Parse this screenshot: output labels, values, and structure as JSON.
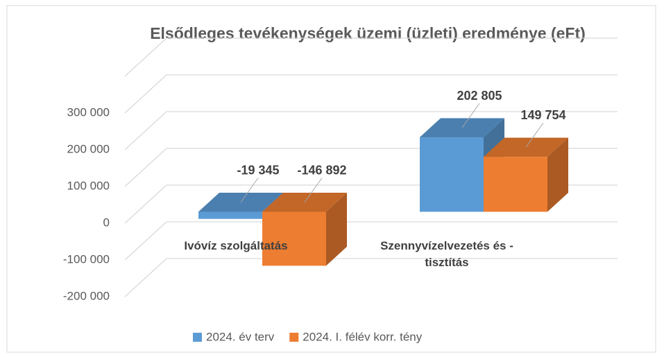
{
  "chart_data": {
    "type": "bar3d",
    "title": "Elsődleges tevékenységek üzemi (üzleti) eredménye (eFt)",
    "categories": [
      "Ivóvíz szolgáltatás",
      "Szennyvízelvezetés és -tisztítás"
    ],
    "series": [
      {
        "name": "2024. év terv",
        "color": "#5b9bd5",
        "values": [
          -19345,
          202805
        ],
        "value_labels": [
          "-19 345",
          "202 805"
        ]
      },
      {
        "name": "2024. I. félév korr. tény",
        "color": "#ed7d31",
        "values": [
          -146892,
          149754
        ],
        "value_labels": [
          "-146 892",
          "149 754"
        ]
      }
    ],
    "ylim": [
      -200000,
      400000
    ],
    "yticks": [
      {
        "value": -200000,
        "label": "-200 000"
      },
      {
        "value": -100000,
        "label": "-100 000"
      },
      0,
      {
        "value": 100000,
        "label": "100 000"
      },
      {
        "value": 200000,
        "label": "200 000"
      },
      {
        "value": 300000,
        "label": "300 000"
      }
    ],
    "grid": true,
    "legend": "bottom"
  }
}
